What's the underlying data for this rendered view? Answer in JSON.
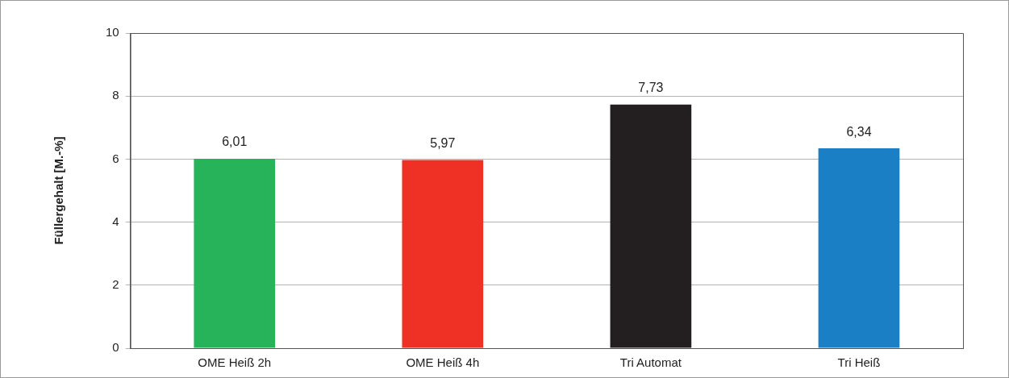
{
  "chart_data": {
    "type": "bar",
    "ylabel": "Füllergehalt [M.-%]",
    "categories": [
      "OME Heiß 2h",
      "OME Heiß 4h",
      "Tri Automat",
      "Tri Heiß"
    ],
    "values": [
      6.01,
      5.97,
      7.73,
      6.34
    ],
    "colors": [
      "#27b35a",
      "#ee3124",
      "#231f20",
      "#1a7fc4"
    ],
    "value_labels": [
      "6,01",
      "5,97",
      "7,73",
      "6,34"
    ],
    "ylim": [
      0,
      10
    ],
    "yticks": [
      0,
      2,
      4,
      6,
      8,
      10
    ],
    "grid": "y",
    "legend": false
  }
}
